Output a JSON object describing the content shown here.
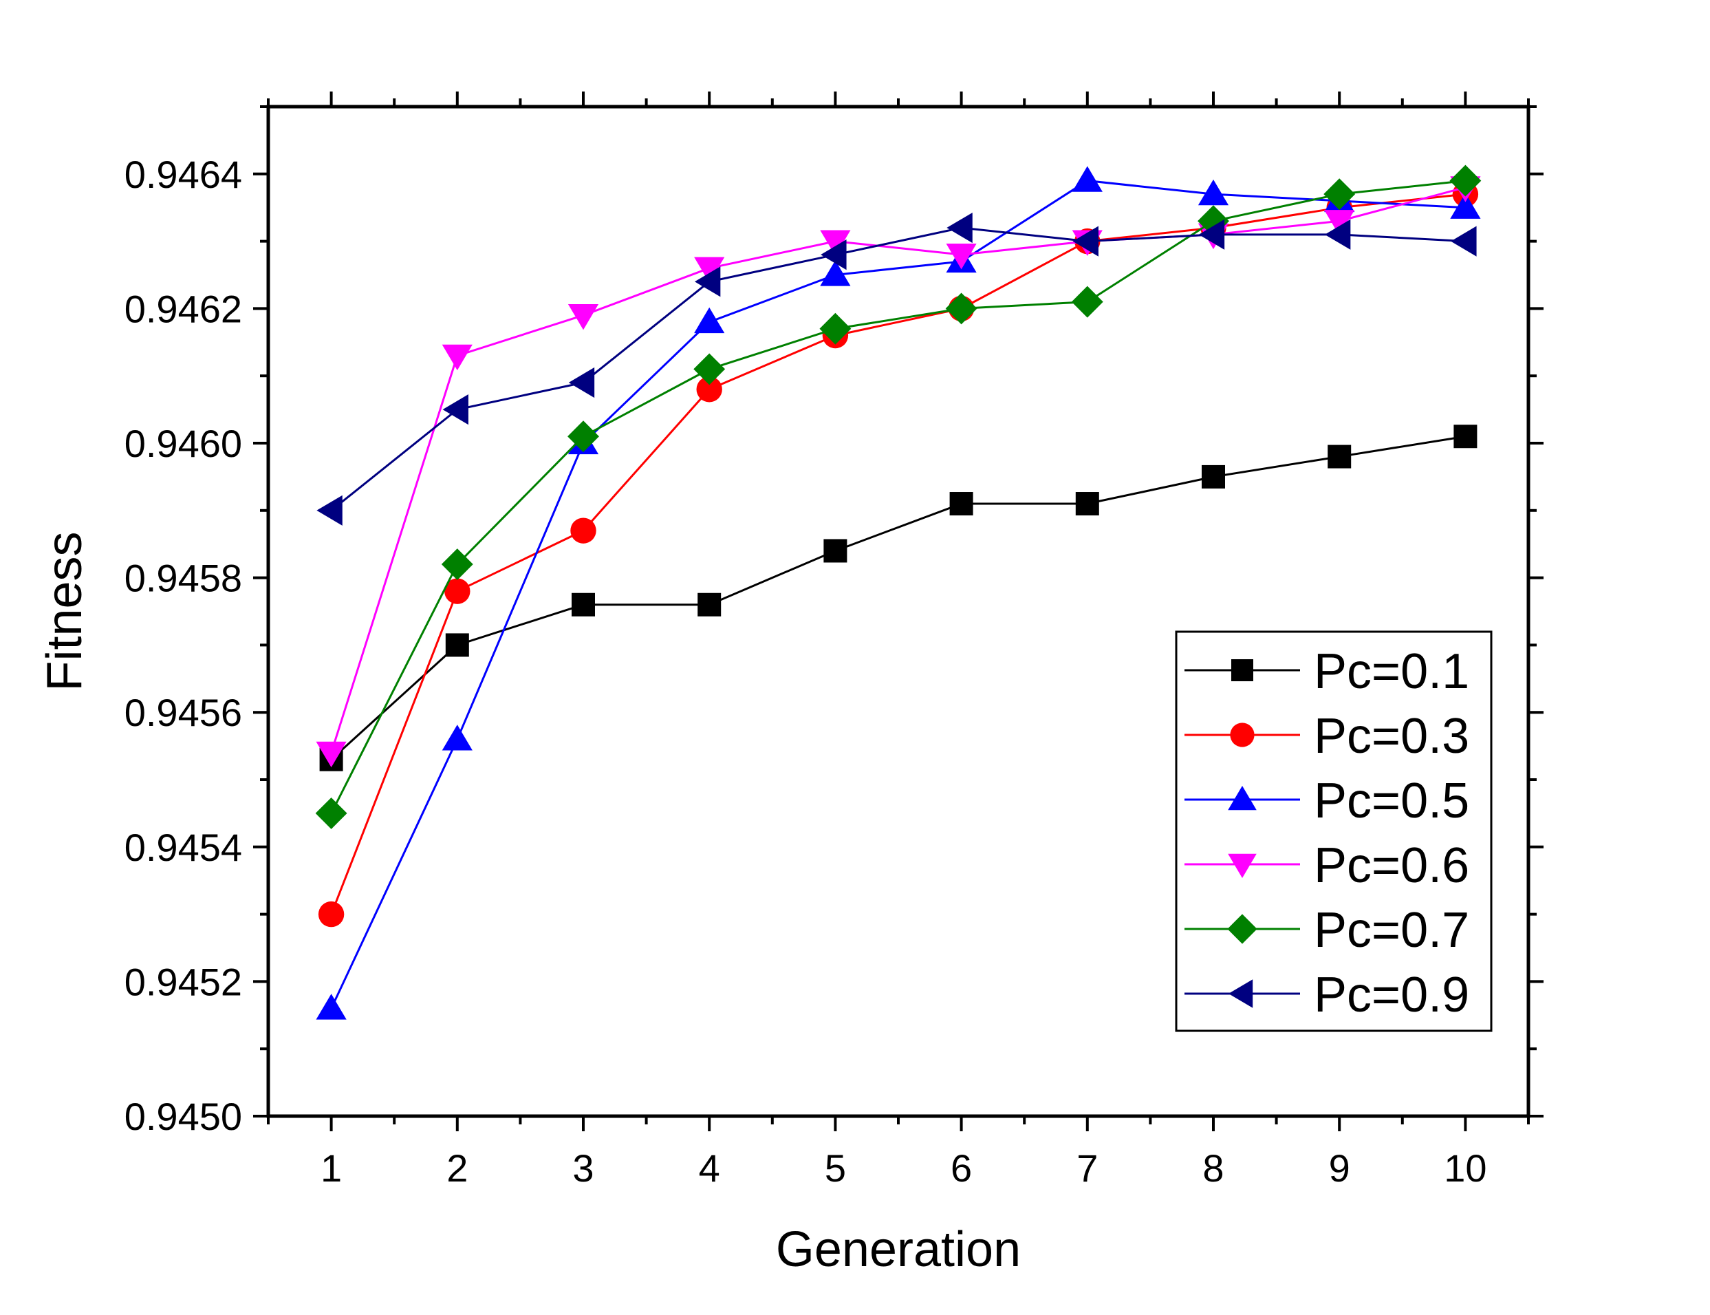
{
  "chart_data": {
    "type": "line",
    "title": "",
    "xlabel": "Generation",
    "ylabel": "Fitness",
    "x": [
      1,
      2,
      3,
      4,
      5,
      6,
      7,
      8,
      9,
      10
    ],
    "xlim": [
      0.5,
      10.5
    ],
    "ylim": [
      0.945,
      0.9465
    ],
    "x_ticks": [
      "1",
      "2",
      "3",
      "4",
      "5",
      "6",
      "7",
      "8",
      "9",
      "10"
    ],
    "y_ticks": [
      {
        "value": 0.945,
        "label": "0.9450"
      },
      {
        "value": 0.9452,
        "label": "0.9452"
      },
      {
        "value": 0.9454,
        "label": "0.9454"
      },
      {
        "value": 0.9456,
        "label": "0.9456"
      },
      {
        "value": 0.9458,
        "label": "0.9458"
      },
      {
        "value": 0.946,
        "label": "0.9460"
      },
      {
        "value": 0.9462,
        "label": "0.9462"
      },
      {
        "value": 0.9464,
        "label": "0.9464"
      }
    ],
    "grid": false,
    "legend_position": "bottom-right",
    "series": [
      {
        "name": "Pc=0.1",
        "color": "#000000",
        "marker": "square",
        "values": [
          0.94553,
          0.9457,
          0.94576,
          0.94576,
          0.94584,
          0.94591,
          0.94591,
          0.94595,
          0.94598,
          0.94601
        ]
      },
      {
        "name": "Pc=0.3",
        "color": "#ff0000",
        "marker": "circle",
        "values": [
          0.9453,
          0.94578,
          0.94587,
          0.94608,
          0.94616,
          0.9462,
          0.9463,
          0.94632,
          0.94635,
          0.94637
        ]
      },
      {
        "name": "Pc=0.5",
        "color": "#0000ff",
        "marker": "triangle-up",
        "values": [
          0.94516,
          0.94556,
          0.946,
          0.94618,
          0.94625,
          0.94627,
          0.94639,
          0.94637,
          0.94636,
          0.94635
        ]
      },
      {
        "name": "Pc=0.6",
        "color": "#ff00ff",
        "marker": "triangle-down",
        "values": [
          0.94554,
          0.94613,
          0.94619,
          0.94626,
          0.9463,
          0.94628,
          0.9463,
          0.94631,
          0.94633,
          0.94638
        ]
      },
      {
        "name": "Pc=0.7",
        "color": "#008000",
        "marker": "diamond",
        "values": [
          0.94545,
          0.94582,
          0.94601,
          0.94611,
          0.94617,
          0.9462,
          0.94621,
          0.94633,
          0.94637,
          0.94639
        ]
      },
      {
        "name": "Pc=0.9",
        "color": "#000080",
        "marker": "triangle-left",
        "values": [
          0.9459,
          0.94605,
          0.94609,
          0.94624,
          0.94628,
          0.94632,
          0.9463,
          0.94631,
          0.94631,
          0.9463
        ]
      }
    ]
  }
}
